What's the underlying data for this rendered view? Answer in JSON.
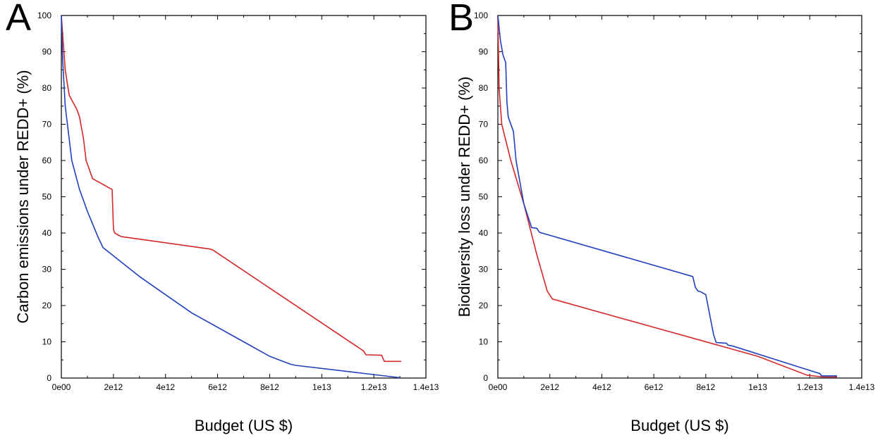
{
  "panels": [
    {
      "letter": "A",
      "chart_data": {
        "type": "line",
        "xlabel": "Budget (US $)",
        "ylabel": "Carbon emissions under REDD+ (%)",
        "xlim": [
          0,
          14000000000000
        ],
        "ylim": [
          0,
          100
        ],
        "x_ticks": [
          {
            "value": 0,
            "label": "0e00"
          },
          {
            "value": 2000000000000,
            "label": "2e12"
          },
          {
            "value": 4000000000000,
            "label": "4e12"
          },
          {
            "value": 6000000000000,
            "label": "6e12"
          },
          {
            "value": 8000000000000,
            "label": "8e12"
          },
          {
            "value": 10000000000000,
            "label": "1e13"
          },
          {
            "value": 12000000000000,
            "label": "1.2e13"
          },
          {
            "value": 14000000000000,
            "label": "1.4e13"
          }
        ],
        "y_ticks": [
          {
            "value": 0,
            "label": "0"
          },
          {
            "value": 10,
            "label": "10"
          },
          {
            "value": 20,
            "label": "20"
          },
          {
            "value": 30,
            "label": "30"
          },
          {
            "value": 40,
            "label": "40"
          },
          {
            "value": 50,
            "label": "50"
          },
          {
            "value": 60,
            "label": "60"
          },
          {
            "value": 70,
            "label": "70"
          },
          {
            "value": 80,
            "label": "80"
          },
          {
            "value": 90,
            "label": "90"
          },
          {
            "value": 100,
            "label": "100"
          }
        ],
        "grid": false,
        "series": [
          {
            "color": "#d62728",
            "x": [
              0,
              50000000000,
              150000000000,
              300000000000,
              600000000000,
              700000000000,
              850000000000,
              950000000000,
              1200000000000,
              1950000000000,
              2000000000000,
              2050000000000,
              2300000000000,
              5700000000000,
              5800000000000,
              11600000000000,
              11700000000000,
              12300000000000,
              12400000000000,
              13050000000000
            ],
            "y": [
              100,
              95,
              85,
              78,
              74,
              72,
              66,
              60,
              55,
              52,
              41,
              40,
              39,
              35.6,
              35.4,
              7.5,
              6.4,
              6.3,
              4.6,
              4.6
            ]
          },
          {
            "color": "#1f3fbf",
            "x": [
              0,
              50000000000,
              150000000000,
              400000000000,
              700000000000,
              1000000000000,
              1400000000000,
              1600000000000,
              3000000000000,
              5000000000000,
              7000000000000,
              8000000000000,
              8800000000000,
              9000000000000,
              13000000000000
            ],
            "y": [
              100,
              88,
              75,
              60,
              52,
              46,
              39,
              36,
              28,
              18,
              10,
              6,
              3.8,
              3.5,
              0.1
            ]
          }
        ]
      }
    },
    {
      "letter": "B",
      "chart_data": {
        "type": "line",
        "xlabel": "Budget (US $)",
        "ylabel": "Biodiversity loss under REDD+ (%)",
        "xlim": [
          0,
          14000000000000
        ],
        "ylim": [
          0,
          100
        ],
        "x_ticks": [
          {
            "value": 0,
            "label": "0e00"
          },
          {
            "value": 2000000000000,
            "label": "2e12"
          },
          {
            "value": 4000000000000,
            "label": "4e12"
          },
          {
            "value": 6000000000000,
            "label": "6e12"
          },
          {
            "value": 8000000000000,
            "label": "8e12"
          },
          {
            "value": 10000000000000,
            "label": "1e13"
          },
          {
            "value": 12000000000000,
            "label": "1.2e13"
          },
          {
            "value": 14000000000000,
            "label": "1.4e13"
          }
        ],
        "y_ticks": [
          {
            "value": 0,
            "label": "0"
          },
          {
            "value": 10,
            "label": "10"
          },
          {
            "value": 20,
            "label": "20"
          },
          {
            "value": 30,
            "label": "30"
          },
          {
            "value": 40,
            "label": "40"
          },
          {
            "value": 50,
            "label": "50"
          },
          {
            "value": 60,
            "label": "60"
          },
          {
            "value": 70,
            "label": "70"
          },
          {
            "value": 80,
            "label": "80"
          },
          {
            "value": 90,
            "label": "90"
          },
          {
            "value": 100,
            "label": "100"
          }
        ],
        "grid": false,
        "series": [
          {
            "color": "#d62728",
            "x": [
              0,
              50000000000,
              150000000000,
              500000000000,
              1000000000000,
              1500000000000,
              1900000000000,
              2100000000000,
              6000000000000,
              10000000000000,
              11900000000000,
              12500000000000,
              13050000000000
            ],
            "y": [
              100,
              80,
              70,
              60,
              48,
              34,
              24,
              21.8,
              14,
              6,
              0.8,
              0.3,
              0.3
            ]
          },
          {
            "color": "#1f3fbf",
            "x": [
              0,
              100000000000,
              200000000000,
              300000000000,
              350000000000,
              400000000000,
              600000000000,
              700000000000,
              1000000000000,
              1300000000000,
              1500000000000,
              1600000000000,
              7500000000000,
              7600000000000,
              7700000000000,
              7800000000000,
              8000000000000,
              8300000000000,
              8400000000000,
              8800000000000,
              8850000000000,
              9050000000000,
              12400000000000,
              12450000000000,
              13050000000000
            ],
            "y": [
              100,
              93,
              89,
              87,
              76,
              72,
              68,
              60,
              48,
              41.5,
              41.3,
              40.2,
              28,
              25,
              24,
              23.8,
              23,
              12,
              9.8,
              9.6,
              9.1,
              8.8,
              1.2,
              0.6,
              0.6
            ]
          }
        ]
      }
    }
  ]
}
